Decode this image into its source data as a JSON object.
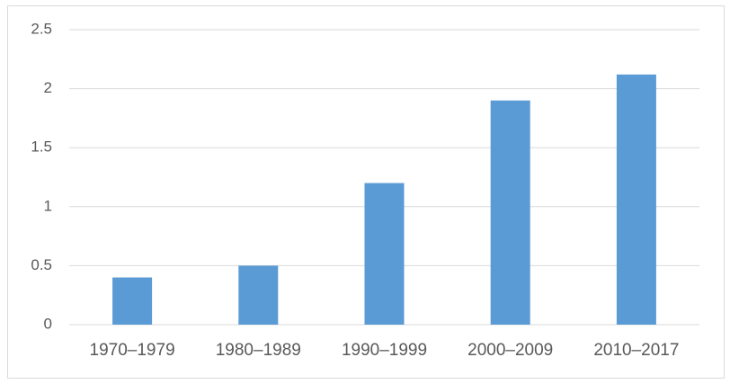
{
  "chart_data": {
    "type": "bar",
    "categories": [
      "1970–1979",
      "1980–1989",
      "1990–1999",
      "2000–2009",
      "2010–2017"
    ],
    "values": [
      0.4,
      0.5,
      1.2,
      1.9,
      2.12
    ],
    "color": "#5b9bd5",
    "ylim": [
      0,
      2.5
    ],
    "yticks": [
      0,
      0.5,
      1,
      1.5,
      2,
      2.5
    ],
    "grid": true
  }
}
